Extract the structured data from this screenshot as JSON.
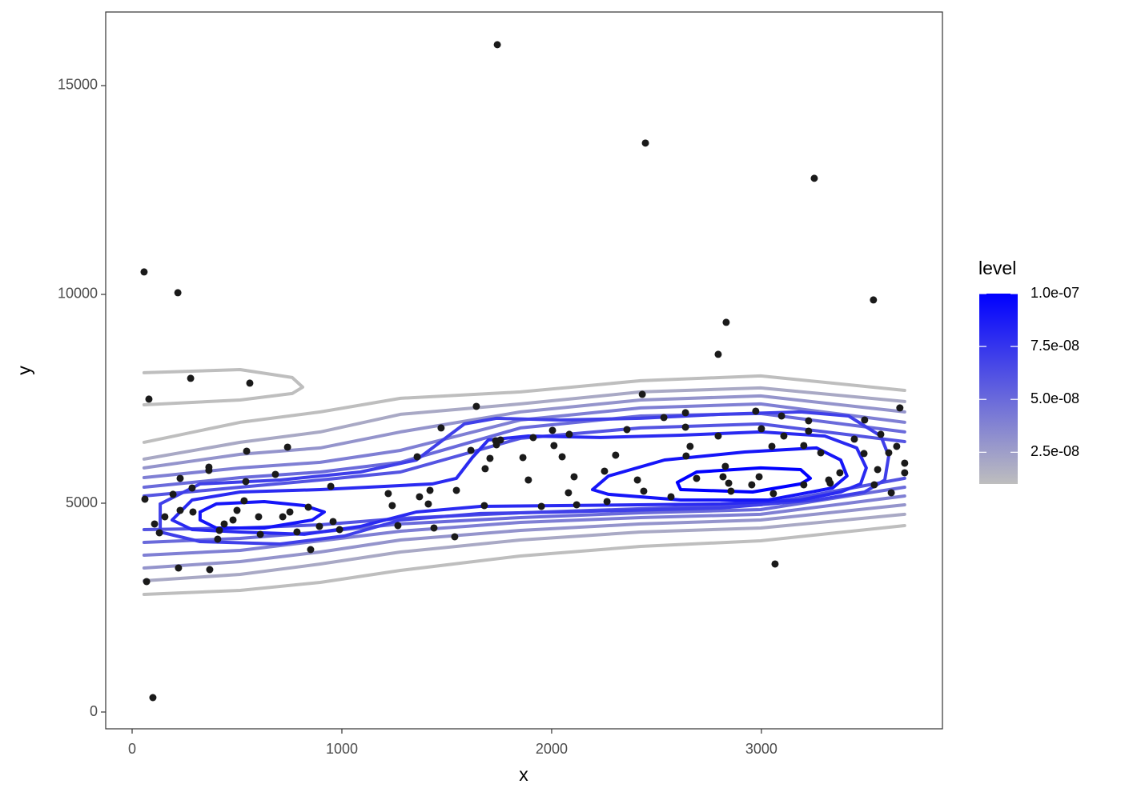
{
  "chart_data": {
    "type": "contour",
    "x_label": "x",
    "y_label": "y",
    "xlim": [
      -126,
      3863
    ],
    "ylim": [
      -402,
      16762
    ],
    "xticks": [
      0,
      1000,
      2000,
      3000
    ],
    "yticks": [
      0,
      5000,
      10000,
      15000
    ],
    "points": {
      "color": "#1a1a1a",
      "x": [
        57,
        218,
        80,
        279,
        561,
        1741,
        2447,
        3252,
        3534,
        2832,
        2794,
        99,
        3065,
        69,
        61,
        107,
        130,
        156,
        221,
        290,
        370,
        366,
        229,
        195,
        439,
        500,
        534,
        408,
        416,
        481,
        546,
        542,
        603,
        611,
        718,
        752,
        741,
        786,
        840,
        851,
        893,
        1221,
        1240,
        1359,
        1473,
        1370,
        1412,
        1420,
        1546,
        1641,
        1615,
        1538,
        1679,
        1683,
        1706,
        1737,
        1756,
        1733,
        1863,
        1889,
        1912,
        1951,
        2004,
        2011,
        2050,
        2084,
        2080,
        2107,
        2119,
        2252,
        2264,
        2305,
        2359,
        2409,
        2439,
        2432,
        2535,
        2569,
        2638,
        2638,
        2641,
        2660,
        2691,
        2794,
        2817,
        2828,
        2844,
        2855,
        2954,
        2989,
        3000,
        3050,
        3057,
        3096,
        3107,
        3202,
        3225,
        3283,
        3321,
        3374,
        3443,
        3492,
        3489,
        3554,
        3569,
        3619,
        3645,
        3660,
        3683,
        3683,
        3538,
        3607,
        3328,
        2973,
        3202,
        3225,
        958,
        947,
        683,
        286,
        366,
        229,
        989,
        1267,
        1439
      ],
      "y": [
        10538,
        10040,
        7492,
        7990,
        7875,
        15979,
        13623,
        12780,
        9867,
        9331,
        8565,
        345,
        3545,
        3123,
        5097,
        4503,
        4292,
        4675,
        3449,
        4790,
        3410,
        5863,
        5595,
        5212,
        4503,
        4828,
        5058,
        4139,
        4349,
        4598,
        6246,
        5518,
        4675,
        4254,
        4675,
        4790,
        6342,
        4311,
        4905,
        3889,
        4445,
        5231,
        4943,
        6112,
        6802,
        5154,
        4982,
        5307,
        5307,
        7319,
        6265,
        4196,
        4943,
        5825,
        6074,
        6399,
        6514,
        6495,
        6093,
        5556,
        6572,
        4924,
        6744,
        6380,
        6112,
        6649,
        5250,
        5633,
        4962,
        5767,
        5039,
        6150,
        6763,
        5556,
        5288,
        7607,
        7051,
        5154,
        6821,
        7166,
        6131,
        6361,
        5595,
        6610,
        5633,
        5882,
        5480,
        5288,
        5441,
        5633,
        6783,
        6361,
        5231,
        7089,
        6610,
        6380,
        6725,
        6208,
        5556,
        5729,
        6534,
        6993,
        6189,
        5805,
        6649,
        5250,
        6361,
        7281,
        5959,
        5729,
        5441,
        6208,
        5480,
        7204,
        5441,
        6974,
        4560,
        5403,
        5690,
        5365,
        5786,
        4828,
        4368,
        4464,
        4407
      ]
    },
    "contours": [
      {
        "level": 1e-08,
        "x": [
          57,
          515,
          897,
          1279,
          1851,
          2424,
          2996,
          3683,
          null,
          57,
          515,
          897,
          1279,
          1851,
          2424,
          2996,
          3683,
          null,
          57,
          515,
          763,
          813,
          763,
          515,
          57
        ],
        "y": [
          6457,
          6936,
          7185,
          7511,
          7664,
          7932,
          8047,
          7702,
          null,
          2817,
          2912,
          3104,
          3391,
          3736,
          3966,
          4100,
          4464,
          null,
          8124,
          8200,
          8009,
          7779,
          7626,
          7472,
          7357
        ]
      },
      {
        "level": 2e-08,
        "x": [
          57,
          515,
          897,
          1279,
          1851,
          2424,
          2996,
          3683,
          null,
          57,
          515,
          897,
          1279,
          1851,
          2424,
          2996,
          3683
        ],
        "y": [
          6055,
          6457,
          6706,
          7128,
          7377,
          7664,
          7760,
          7434,
          null,
          3142,
          3296,
          3545,
          3832,
          4119,
          4311,
          4407,
          4733
        ]
      },
      {
        "level": 3e-08,
        "x": [
          57,
          515,
          897,
          1279,
          1851,
          2424,
          2996,
          3683,
          null,
          57,
          515,
          897,
          1279,
          1851,
          2424,
          2996,
          3683
        ],
        "y": [
          5844,
          6170,
          6323,
          6706,
          7185,
          7472,
          7568,
          7185,
          null,
          3449,
          3602,
          3832,
          4119,
          4349,
          4503,
          4598,
          4962
        ]
      },
      {
        "level": 4e-08,
        "x": [
          57,
          515,
          897,
          1279,
          1851,
          2424,
          2996,
          3683,
          null,
          57,
          515,
          897,
          1279,
          1851,
          2424,
          2996,
          3683
        ],
        "y": [
          5614,
          5844,
          5978,
          6265,
          6993,
          7281,
          7377,
          6936,
          null,
          3755,
          3870,
          4100,
          4330,
          4541,
          4656,
          4733,
          5173
        ]
      },
      {
        "level": 5e-08,
        "x": [
          57,
          515,
          897,
          1279,
          1851,
          2424,
          2996,
          3683,
          null,
          57,
          515,
          897,
          1279,
          1851,
          2424,
          2996,
          3683
        ],
        "y": [
          5384,
          5614,
          5748,
          5978,
          6802,
          7089,
          7147,
          6706,
          null,
          4062,
          4158,
          4311,
          4503,
          4656,
          4771,
          4847,
          5384
        ]
      },
      {
        "level": 6e-08,
        "x": [
          57,
          515,
          897,
          1279,
          1851,
          2424,
          2996,
          3683,
          null,
          57,
          515,
          897,
          1279,
          1851,
          2424,
          2996,
          3683
        ],
        "y": [
          5173,
          5384,
          5556,
          5748,
          6553,
          6802,
          6898,
          6476,
          null,
          4368,
          4407,
          4483,
          4637,
          4771,
          4867,
          4962,
          5595
        ]
      },
      {
        "level": 7e-08,
        "x": [
          134,
          324,
          706,
          1088,
          1355,
          1584,
          1737,
          2042,
          2424,
          2805,
          3187,
          3416,
          3569,
          3607,
          3588,
          3492,
          3263,
          2805,
          2042,
          1660,
          1279,
          1011,
          706,
          324,
          134,
          134
        ],
        "y": [
          4982,
          5461,
          5556,
          5748,
          6035,
          6898,
          7032,
          6993,
          7032,
          7128,
          7185,
          7089,
          6610,
          6131,
          5556,
          5269,
          5077,
          4886,
          4790,
          4752,
          4598,
          4215,
          4024,
          4081,
          4311,
          4982
        ]
      },
      {
        "level": 8e-08,
        "x": [
          191,
          286,
          515,
          897,
          1202,
          1431,
          1546,
          1622,
          1698,
          1889,
          2233,
          2615,
          2996,
          3302,
          3454,
          3500,
          3473,
          3378,
          3187,
          2805,
          2042,
          1660,
          1355,
          1088,
          821,
          515,
          286,
          191
        ],
        "y": [
          4598,
          5077,
          5269,
          5326,
          5403,
          5461,
          5595,
          6093,
          6514,
          6610,
          6572,
          6629,
          6706,
          6610,
          6323,
          5844,
          5461,
          5269,
          5077,
          4982,
          4943,
          4924,
          4790,
          4445,
          4254,
          4311,
          4368,
          4598
        ]
      },
      {
        "level": 9e-08,
        "x": [
          2195,
          2271,
          2538,
          2920,
          3263,
          3378,
          3408,
          3340,
          3034,
          2615,
          2271,
          2195,
          null,
          324,
          401,
          630,
          821,
          916,
          859,
          630,
          401,
          324,
          324
        ],
        "y": [
          5326,
          5652,
          6035,
          6227,
          6323,
          6035,
          5652,
          5365,
          5077,
          5077,
          5212,
          5326,
          null,
          4790,
          4982,
          5039,
          4943,
          4790,
          4598,
          4407,
          4407,
          4598,
          4790
        ]
      },
      {
        "level": 1e-07,
        "x": [
          2599,
          2691,
          2996,
          3187,
          3233,
          3187,
          2958,
          2615,
          2599
        ],
        "y": [
          5499,
          5748,
          5844,
          5805,
          5595,
          5461,
          5269,
          5326,
          5499
        ]
      }
    ],
    "legend": {
      "title": "level",
      "lim": [
        1e-08,
        1e-07
      ],
      "color_low": "#bebebe",
      "color_high": "#0000ff",
      "ticks": [
        {
          "value": 2.5e-08,
          "label": "2.5e-08"
        },
        {
          "value": 5e-08,
          "label": "5.0e-08"
        },
        {
          "value": 7.5e-08,
          "label": "7.5e-08"
        },
        {
          "value": 1e-07,
          "label": "1.0e-07"
        }
      ]
    }
  }
}
